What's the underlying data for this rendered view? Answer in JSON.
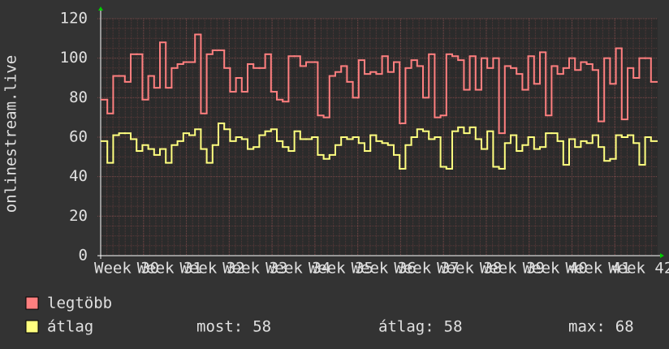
{
  "chart_data": {
    "type": "step-line",
    "y_label": "onlinestream.live",
    "ylim": [
      0,
      120
    ],
    "yticks": [
      0,
      20,
      40,
      60,
      80,
      100,
      120
    ],
    "xticks": [
      "Week 30",
      "Week 31",
      "Week 32",
      "Week 33",
      "Week 34",
      "Week 35",
      "Week 36",
      "Week 37",
      "Week 38",
      "Week 39",
      "Week 40",
      "Week 41",
      "Week 42"
    ],
    "grid": true,
    "series": [
      {
        "name": "legtöbb",
        "color": "#ff7f7f",
        "values": [
          79,
          72,
          91,
          91,
          88,
          102,
          102,
          79,
          91,
          85,
          108,
          85,
          95,
          97,
          98,
          98,
          112,
          72,
          102,
          104,
          104,
          95,
          83,
          90,
          83,
          97,
          95,
          95,
          102,
          83,
          79,
          78,
          101,
          101,
          96,
          98,
          98,
          71,
          70,
          91,
          93,
          96,
          88,
          80,
          99,
          92,
          93,
          92,
          101,
          93,
          98,
          67,
          95,
          99,
          96,
          80,
          102,
          70,
          71,
          102,
          101,
          99,
          84,
          101,
          84,
          100,
          95,
          100,
          62,
          96,
          95,
          92,
          84,
          101,
          87,
          103,
          71,
          96,
          92,
          95,
          100,
          94,
          98,
          97,
          94,
          68,
          100,
          87,
          105,
          69,
          95,
          90,
          100,
          100,
          88
        ]
      },
      {
        "name": "átlag",
        "color": "#ffff7f",
        "values": [
          58,
          47,
          61,
          62,
          62,
          59,
          53,
          56,
          54,
          51,
          54,
          47,
          56,
          58,
          62,
          61,
          64,
          54,
          47,
          56,
          67,
          64,
          58,
          60,
          59,
          54,
          55,
          61,
          63,
          64,
          58,
          55,
          53,
          63,
          59,
          59,
          60,
          51,
          49,
          51,
          56,
          60,
          59,
          60,
          57,
          53,
          61,
          58,
          57,
          56,
          51,
          44,
          56,
          60,
          64,
          63,
          59,
          60,
          45,
          44,
          63,
          65,
          62,
          65,
          59,
          54,
          63,
          45,
          44,
          57,
          61,
          53,
          56,
          60,
          54,
          55,
          62,
          62,
          58,
          46,
          59,
          55,
          58,
          57,
          61,
          55,
          48,
          49,
          61,
          60,
          61,
          57,
          46,
          60,
          58
        ]
      }
    ],
    "stats": [
      {
        "label": "most:",
        "value": 58
      },
      {
        "label": "átlag:",
        "value": 58
      },
      {
        "label": "max:",
        "value": 68
      }
    ]
  }
}
